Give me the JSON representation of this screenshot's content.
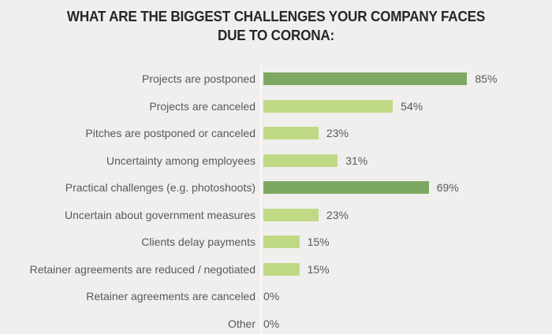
{
  "chart_data": {
    "type": "bar",
    "orientation": "horizontal",
    "title": "WHAT ARE THE BIGGEST CHALLENGES YOUR COMPANY FACES DUE TO CORONA:",
    "title_lines": [
      "WHAT ARE THE BIGGEST CHALLENGES YOUR COMPANY FACES",
      "DUE TO CORONA:"
    ],
    "categories": [
      "Projects are postponed",
      "Projects are canceled",
      "Pitches are postponed or canceled",
      "Uncertainty among employees",
      "Practical challenges (e.g. photoshoots)",
      "Uncertain about government measures",
      "Clients delay payments",
      "Retainer agreements are reduced / negotiated",
      "Retainer agreements are canceled",
      "Other"
    ],
    "values": [
      85,
      54,
      23,
      31,
      69,
      23,
      15,
      15,
      0,
      0
    ],
    "value_labels": [
      "85%",
      "54%",
      "23%",
      "31%",
      "69%",
      "23%",
      "15%",
      "15%",
      "0%",
      "0%"
    ],
    "emphasized": [
      true,
      false,
      false,
      false,
      true,
      false,
      false,
      false,
      false,
      false
    ],
    "unit": "%",
    "xlim": [
      0,
      100
    ],
    "grid": false,
    "legend": false,
    "colors": {
      "bar_default": "#c0d985",
      "bar_emphasis": "#7da862",
      "background": "#f0efee",
      "axis_line": "#fbfaf9",
      "label_text": "#595959",
      "title_text": "#262626"
    }
  }
}
